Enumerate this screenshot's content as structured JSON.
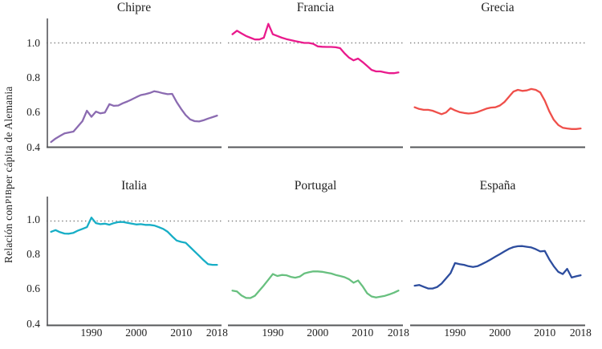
{
  "figure": {
    "ylabel_parts": [
      "Relación con ",
      "PIB",
      " per cápita de Alemania"
    ],
    "colors": {
      "axis": "#56575a",
      "reference_dotted": "#828282",
      "text": "#1f1f1f",
      "background": "#ffffff"
    }
  },
  "chart_data": {
    "type": "line",
    "title": "",
    "ylabel": "Relación con PIB per cápita de Alemania",
    "xlabel": "",
    "grid": false,
    "legend": false,
    "reference_line": 1.0,
    "xlim": [
      1980,
      2019
    ],
    "ylim": [
      0.4,
      1.15
    ],
    "x_tick_values": [
      1990,
      2000,
      2010,
      2018
    ],
    "x_tick_labels": [
      "1990",
      "2000",
      "2010",
      "2018"
    ],
    "y_tick_values": [
      1.0,
      0.8,
      0.6,
      0.4
    ],
    "y_tick_labels": [
      "1.0",
      "0.8",
      "0.6",
      "0.4"
    ],
    "x": [
      1981,
      1982,
      1983,
      1984,
      1985,
      1986,
      1987,
      1988,
      1989,
      1990,
      1991,
      1992,
      1993,
      1994,
      1995,
      1996,
      1997,
      1998,
      1999,
      2000,
      2001,
      2002,
      2003,
      2004,
      2005,
      2006,
      2007,
      2008,
      2009,
      2010,
      2011,
      2012,
      2013,
      2014,
      2015,
      2016,
      2017,
      2018
    ],
    "panels": [
      {
        "title": "Chipre",
        "color": "#8b6bb1",
        "values": [
          0.43,
          0.45,
          0.465,
          0.48,
          0.485,
          0.49,
          0.52,
          0.55,
          0.61,
          0.575,
          0.605,
          0.595,
          0.6,
          0.648,
          0.638,
          0.64,
          0.653,
          0.663,
          0.675,
          0.688,
          0.7,
          0.705,
          0.712,
          0.722,
          0.717,
          0.71,
          0.705,
          0.707,
          0.66,
          0.62,
          0.585,
          0.56,
          0.55,
          0.548,
          0.555,
          0.565,
          0.573,
          0.582
        ]
      },
      {
        "title": "Francia",
        "color": "#e91a8c",
        "values": [
          1.05,
          1.07,
          1.055,
          1.04,
          1.03,
          1.02,
          1.02,
          1.03,
          1.11,
          1.05,
          1.04,
          1.03,
          1.022,
          1.016,
          1.01,
          1.005,
          1.0,
          1.0,
          0.995,
          0.98,
          0.978,
          0.977,
          0.977,
          0.975,
          0.97,
          0.94,
          0.915,
          0.9,
          0.91,
          0.89,
          0.868,
          0.845,
          0.836,
          0.836,
          0.83,
          0.826,
          0.826,
          0.83
        ]
      },
      {
        "title": "Grecia",
        "color": "#ef4f4a",
        "values": [
          0.63,
          0.62,
          0.615,
          0.615,
          0.61,
          0.6,
          0.59,
          0.6,
          0.625,
          0.612,
          0.602,
          0.597,
          0.594,
          0.596,
          0.602,
          0.612,
          0.622,
          0.628,
          0.63,
          0.64,
          0.66,
          0.69,
          0.72,
          0.73,
          0.724,
          0.727,
          0.735,
          0.73,
          0.715,
          0.668,
          0.607,
          0.558,
          0.528,
          0.512,
          0.508,
          0.505,
          0.505,
          0.508
        ]
      },
      {
        "title": "Italia",
        "color": "#17aec6",
        "values": [
          0.938,
          0.948,
          0.936,
          0.928,
          0.927,
          0.932,
          0.945,
          0.955,
          0.965,
          1.02,
          0.988,
          0.982,
          0.985,
          0.979,
          0.988,
          0.994,
          0.995,
          0.99,
          0.985,
          0.98,
          0.982,
          0.978,
          0.978,
          0.974,
          0.965,
          0.955,
          0.938,
          0.912,
          0.888,
          0.88,
          0.875,
          0.85,
          0.825,
          0.8,
          0.775,
          0.752,
          0.748,
          0.748
        ]
      },
      {
        "title": "Portugal",
        "color": "#68c07f",
        "values": [
          0.6,
          0.595,
          0.572,
          0.558,
          0.557,
          0.57,
          0.6,
          0.63,
          0.662,
          0.695,
          0.684,
          0.69,
          0.688,
          0.679,
          0.674,
          0.68,
          0.698,
          0.705,
          0.71,
          0.71,
          0.708,
          0.703,
          0.698,
          0.69,
          0.684,
          0.677,
          0.665,
          0.645,
          0.658,
          0.625,
          0.585,
          0.566,
          0.56,
          0.565,
          0.57,
          0.578,
          0.588,
          0.6
        ]
      },
      {
        "title": "España",
        "color": "#2d4d9e",
        "values": [
          0.628,
          0.632,
          0.622,
          0.612,
          0.612,
          0.62,
          0.64,
          0.67,
          0.7,
          0.758,
          0.752,
          0.748,
          0.74,
          0.736,
          0.74,
          0.752,
          0.765,
          0.78,
          0.795,
          0.81,
          0.825,
          0.84,
          0.85,
          0.855,
          0.856,
          0.852,
          0.848,
          0.838,
          0.825,
          0.828,
          0.78,
          0.74,
          0.708,
          0.695,
          0.725,
          0.675,
          0.682,
          0.688
        ]
      }
    ]
  }
}
